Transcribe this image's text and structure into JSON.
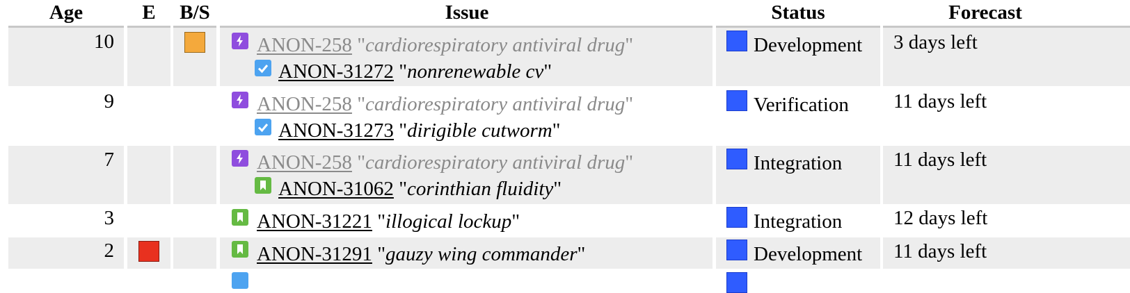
{
  "headers": {
    "age": "Age",
    "e": "E",
    "bs": "B/S",
    "issue": "Issue",
    "status": "Status",
    "forecast": "Forecast"
  },
  "colors": {
    "bs_orange": "#f4a93c",
    "e_red": "#e8311f",
    "status_blue": "#2f5cff",
    "epic_purple": "#8f4dde",
    "subtask_blue": "#4da3f0",
    "story_green": "#65ba43"
  },
  "rows": [
    {
      "age": "10",
      "parent": {
        "key": "ANON-258",
        "title": "cardiorespiratory antiviral drug",
        "icon": "epic-icon"
      },
      "child": {
        "key": "ANON-31272",
        "title": "nonrenewable cv",
        "icon": "subtask-icon"
      },
      "status": "Development",
      "forecast": "3 days left",
      "bs": "orange"
    },
    {
      "age": "9",
      "parent": {
        "key": "ANON-258",
        "title": "cardiorespiratory antiviral drug",
        "icon": "epic-icon"
      },
      "child": {
        "key": "ANON-31273",
        "title": "dirigible cutworm",
        "icon": "subtask-icon"
      },
      "status": "Verification",
      "forecast": "11 days left"
    },
    {
      "age": "7",
      "parent": {
        "key": "ANON-258",
        "title": "cardiorespiratory antiviral drug",
        "icon": "epic-icon"
      },
      "child": {
        "key": "ANON-31062",
        "title": "corinthian fluidity",
        "icon": "story-icon"
      },
      "status": "Integration",
      "forecast": "11 days left"
    },
    {
      "age": "3",
      "issue": {
        "key": "ANON-31221",
        "title": "illogical lockup",
        "icon": "story-icon"
      },
      "status": "Integration",
      "forecast": "12 days left"
    },
    {
      "age": "2",
      "issue": {
        "key": "ANON-31291",
        "title": "gauzy wing commander",
        "icon": "story-icon"
      },
      "status": "Development",
      "forecast": "11 days left",
      "e": "red"
    }
  ]
}
